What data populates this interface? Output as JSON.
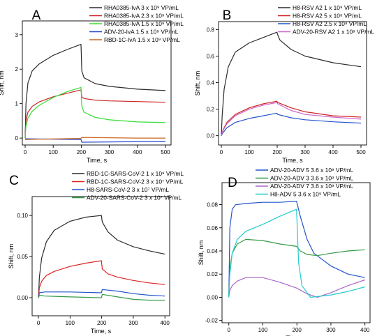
{
  "chart_data": [
    {
      "panel": "A",
      "type": "line",
      "xlabel": "Time, s",
      "ylabel": "Shift, nm",
      "xlim": [
        -10,
        520
      ],
      "ylim": [
        -0.2,
        3.4
      ],
      "xticks": [
        0,
        100,
        200,
        300,
        400,
        500
      ],
      "yticks": [
        0,
        1,
        2,
        3
      ],
      "legend_position": "top-right",
      "series": [
        {
          "name": "RHA0385-IvA 3 x 10⁹ VP/mL",
          "color": "#2b2b2b",
          "x": [
            0,
            3,
            10,
            25,
            50,
            100,
            150,
            199,
            202,
            210,
            250,
            300,
            400,
            500
          ],
          "y": [
            0,
            1.0,
            1.6,
            1.95,
            2.15,
            2.4,
            2.57,
            2.72,
            1.95,
            1.75,
            1.58,
            1.5,
            1.42,
            1.38
          ]
        },
        {
          "name": "RHA0385-IvA 2.3 x 10⁹ VP/mL",
          "color": "#cc2222",
          "x": [
            0,
            3,
            10,
            25,
            50,
            100,
            150,
            199,
            202,
            210,
            250,
            300,
            400,
            500
          ],
          "y": [
            0,
            0.5,
            0.75,
            0.92,
            1.05,
            1.2,
            1.3,
            1.4,
            1.2,
            1.15,
            1.1,
            1.08,
            1.06,
            1.04
          ]
        },
        {
          "name": "RHA0385-IvA 1.5 x 10⁹ VP/mL",
          "color": "#33dd33",
          "x": [
            0,
            3,
            10,
            25,
            50,
            100,
            150,
            199,
            202,
            210,
            250,
            300,
            400,
            500
          ],
          "y": [
            0,
            0.35,
            0.58,
            0.78,
            0.95,
            1.18,
            1.35,
            1.47,
            0.92,
            0.75,
            0.6,
            0.53,
            0.47,
            0.45
          ]
        },
        {
          "name": "ADV-20-IvA 1.5 x 10⁹ VP/mL",
          "color": "#2244cc",
          "x": [
            0,
            100,
            199,
            202,
            300,
            400,
            500
          ],
          "y": [
            -0.02,
            -0.03,
            -0.04,
            -0.12,
            -0.11,
            -0.1,
            -0.09
          ]
        },
        {
          "name": "RBD-1C-IvA 1.5 x 10⁹ VP/mL",
          "color": "#cc6622",
          "x": [
            0,
            50,
            199,
            202,
            300,
            400,
            500
          ],
          "y": [
            -0.04,
            -0.03,
            -0.01,
            0.02,
            0.01,
            0.0,
            0.0
          ]
        }
      ]
    },
    {
      "panel": "B",
      "type": "line",
      "xlabel": "Time, s",
      "ylabel": "Shift, nm",
      "xlim": [
        -10,
        520
      ],
      "ylim": [
        -0.07,
        0.86
      ],
      "xticks": [
        0,
        100,
        200,
        300,
        400,
        500
      ],
      "yticks": [
        0.0,
        0.2,
        0.4,
        0.6,
        0.8
      ],
      "yticklabels": [
        "0.0",
        "0.2",
        "0.4",
        "0.6",
        "0.8"
      ],
      "legend_position": "top-right",
      "series": [
        {
          "name": "H8-RSV A2 1 x 10⁹ VP/mL",
          "color": "#2b2b2b",
          "x": [
            0,
            3,
            10,
            25,
            50,
            100,
            150,
            199,
            202,
            210,
            250,
            300,
            400,
            500
          ],
          "y": [
            0,
            0.15,
            0.35,
            0.52,
            0.63,
            0.7,
            0.74,
            0.78,
            0.76,
            0.72,
            0.65,
            0.6,
            0.55,
            0.52
          ]
        },
        {
          "name": "H8-RSV A2 5 x 10⁸ VP/mL",
          "color": "#cc2222",
          "x": [
            0,
            5,
            20,
            50,
            100,
            150,
            199,
            202,
            250,
            300,
            400,
            500
          ],
          "y": [
            0,
            0.04,
            0.1,
            0.16,
            0.21,
            0.24,
            0.26,
            0.25,
            0.21,
            0.18,
            0.15,
            0.14
          ]
        },
        {
          "name": "H8-RSV A2 2.5 x 10⁸ VP/mL",
          "color": "#2255cc",
          "x": [
            0,
            5,
            20,
            50,
            100,
            150,
            199,
            202,
            250,
            300,
            400,
            500
          ],
          "y": [
            0,
            0.02,
            0.06,
            0.1,
            0.13,
            0.15,
            0.17,
            0.16,
            0.135,
            0.12,
            0.105,
            0.095
          ]
        },
        {
          "name": "ADV-20-RSV A2 1 x 10⁹ VP/mL",
          "color": "#cc66cc",
          "x": [
            0,
            5,
            20,
            50,
            100,
            150,
            199,
            202,
            250,
            300,
            400,
            500
          ],
          "y": [
            0,
            0.035,
            0.09,
            0.15,
            0.2,
            0.23,
            0.25,
            0.24,
            0.19,
            0.16,
            0.14,
            0.125
          ]
        }
      ]
    },
    {
      "panel": "C",
      "type": "line",
      "xlabel": "Time, s",
      "ylabel": "Shift, nm",
      "xlim": [
        -20,
        415
      ],
      "ylim": [
        -0.022,
        0.123
      ],
      "xticks": [
        0,
        100,
        200,
        300,
        400
      ],
      "yticks": [
        0.0,
        0.05,
        0.1
      ],
      "yticklabels": [
        "0.00",
        "0.05",
        "0.10"
      ],
      "legend_position": "top-right",
      "series": [
        {
          "name": "RBD-1C-SARS-CoV-2 1 x 10⁹ VP/mL",
          "color": "#2b2b2b",
          "x": [
            0,
            3,
            10,
            25,
            50,
            100,
            150,
            199,
            202,
            220,
            250,
            300,
            350,
            400
          ],
          "y": [
            0,
            0.025,
            0.048,
            0.068,
            0.082,
            0.093,
            0.098,
            0.1,
            0.092,
            0.08,
            0.07,
            0.062,
            0.057,
            0.053
          ]
        },
        {
          "name": "RBD-1C-SARS-CoV-2 3 x 10⁷ VP/mL",
          "color": "#dd2222",
          "x": [
            0,
            3,
            10,
            25,
            50,
            100,
            150,
            199,
            202,
            220,
            250,
            300,
            350,
            400
          ],
          "y": [
            0,
            0.012,
            0.02,
            0.027,
            0.032,
            0.038,
            0.042,
            0.045,
            0.035,
            0.029,
            0.025,
            0.021,
            0.018,
            0.016
          ]
        },
        {
          "name": "H8-SARS-CoV-2 3 x 10⁷ VP/mL",
          "color": "#2255cc",
          "x": [
            0,
            3,
            20,
            100,
            199,
            202,
            250,
            300,
            350,
            400
          ],
          "y": [
            0,
            0.006,
            0.007,
            0.007,
            0.006,
            0.01,
            0.008,
            0.005,
            0.003,
            0.002
          ]
        },
        {
          "name": "ADV-20-SARS-CoV-2 3 x 10⁷ VP/mL",
          "color": "#339944",
          "x": [
            0,
            3,
            20,
            100,
            199,
            202,
            250,
            300,
            350,
            400
          ],
          "y": [
            0,
            0.003,
            0.002,
            0.001,
            0.0,
            0.004,
            0.001,
            -0.002,
            -0.003,
            -0.003
          ]
        }
      ]
    },
    {
      "panel": "D",
      "type": "line",
      "xlabel": "Time, s",
      "ylabel": "Shift, nm",
      "xlim": [
        -20,
        415
      ],
      "ylim": [
        -0.022,
        0.099
      ],
      "xticks": [
        0,
        100,
        200,
        300,
        400
      ],
      "yticks": [
        -0.02,
        0.0,
        0.02,
        0.04,
        0.06,
        0.08
      ],
      "yticklabels": [
        "-0.02",
        "0.00",
        "0.02",
        "0.04",
        "0.06",
        "0.08"
      ],
      "legend_position": "top-right",
      "series": [
        {
          "name": "ADV-20-ADV 5  3.6 x 10⁹ VP/mL",
          "color": "#2255cc",
          "x": [
            0,
            3,
            10,
            20,
            50,
            100,
            150,
            199,
            210,
            230,
            250,
            300,
            350,
            400
          ],
          "y": [
            0,
            0.06,
            0.076,
            0.08,
            0.081,
            0.082,
            0.082,
            0.083,
            0.07,
            0.05,
            0.038,
            0.027,
            0.02,
            0.017
          ]
        },
        {
          "name": "ADV-20-ADV 3  3.6 x 10⁹ VP/mL",
          "color": "#339944",
          "x": [
            0,
            3,
            10,
            25,
            50,
            100,
            150,
            199,
            210,
            230,
            260,
            300,
            350,
            400
          ],
          "y": [
            0,
            0.025,
            0.038,
            0.046,
            0.05,
            0.049,
            0.046,
            0.044,
            0.04,
            0.037,
            0.036,
            0.038,
            0.04,
            0.041
          ]
        },
        {
          "name": "ADV-20-ADV 7  3.6 x 10⁹ VP/mL",
          "color": "#aa66cc",
          "x": [
            0,
            3,
            10,
            25,
            50,
            100,
            150,
            199,
            230,
            260,
            300,
            350,
            400
          ],
          "y": [
            0,
            0.006,
            0.01,
            0.014,
            0.017,
            0.017,
            0.013,
            0.008,
            0.003,
            0.0,
            0.004,
            0.01,
            0.015
          ]
        },
        {
          "name": "H8-ADV 5  3.6 x 10⁹ VP/mL",
          "color": "#22cccc",
          "x": [
            0,
            3,
            10,
            25,
            50,
            100,
            150,
            199,
            205,
            215,
            240,
            300,
            350,
            400
          ],
          "y": [
            0,
            0.02,
            0.038,
            0.05,
            0.057,
            0.063,
            0.07,
            0.076,
            0.03,
            0.01,
            0.0,
            0.002,
            0.005,
            0.009
          ]
        }
      ]
    }
  ]
}
